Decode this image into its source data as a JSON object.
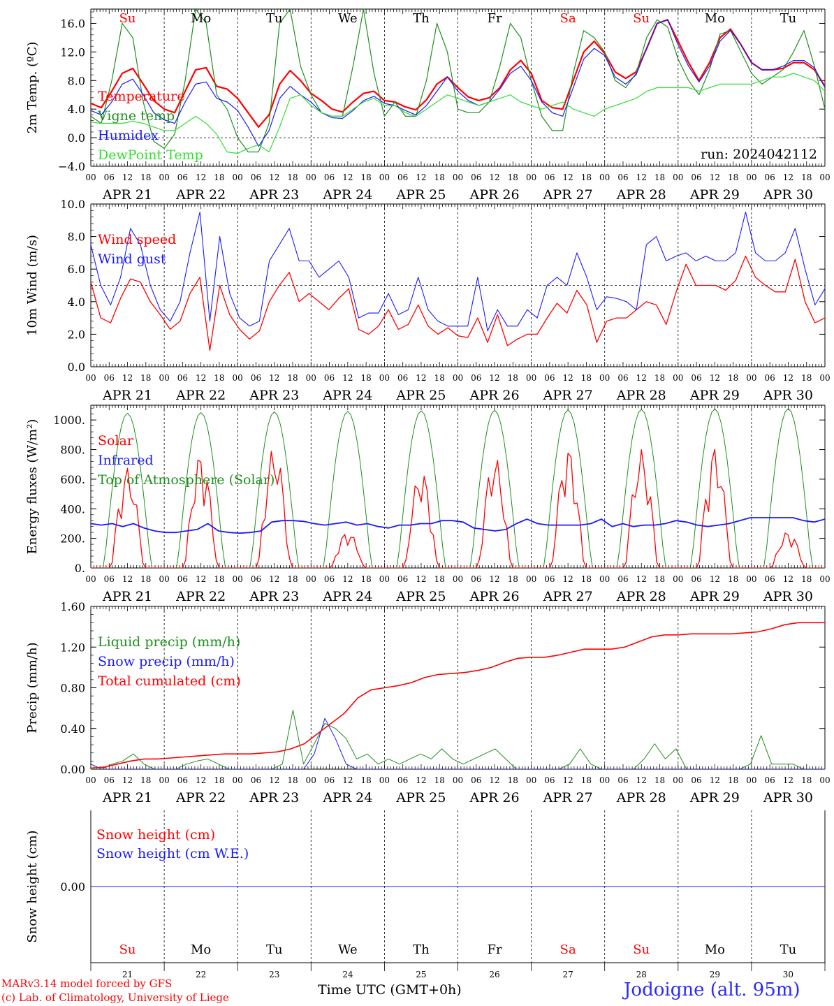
{
  "days": [
    "21",
    "22",
    "23",
    "24",
    "25",
    "26",
    "27",
    "28",
    "29",
    "30"
  ],
  "date_labels": [
    "APR 21",
    "APR 22",
    "APR 23",
    "APR 24",
    "APR 25",
    "APR 26",
    "APR 27",
    "APR 28",
    "APR 29",
    "APR 30"
  ],
  "hour_labels": [
    "00",
    "06",
    "12",
    "18"
  ],
  "weekdays": [
    "Su",
    "Mo",
    "Tu",
    "We",
    "Th",
    "Fr",
    "Sa",
    "Su",
    "Mo",
    "Tu"
  ],
  "weekday_colors": [
    "#ff0000",
    "#000000",
    "#000000",
    "#000000",
    "#000000",
    "#000000",
    "#ff0000",
    "#ff0000",
    "#000000",
    "#000000"
  ],
  "run_label": "run: 2024042112",
  "x_title": "Time UTC (GMT+0h)",
  "credits": [
    "MARv3.14 model forced by GFS",
    "(c) Lab. of Climatology, University of Liege"
  ],
  "station": "Jodoigne (alt. 95m)",
  "colors": {
    "red": "#ff0000",
    "green": "#1f8f1f",
    "blue": "#1a1aff",
    "lightgreen": "#33dd33",
    "purple": "#7a2fa0"
  },
  "chart_data": [
    {
      "type": "line",
      "ylabel": "2m Temp. (ºC)",
      "ylim": [
        -4,
        18
      ],
      "yticks": [
        -4,
        0,
        4,
        8,
        12,
        16
      ],
      "ytick_labels": [
        "−4.0",
        "0.0",
        "4.0",
        "8.0",
        "12.0",
        "16.0"
      ],
      "dashed_y": 0,
      "series": [
        {
          "name": "Temperature",
          "color": "#ff0000",
          "width": 2.2,
          "values": [
            4.8,
            4.2,
            6.5,
            9.0,
            9.7,
            7.5,
            5.2,
            4.0,
            3.5,
            6.5,
            9.5,
            9.8,
            7.2,
            6.8,
            5.5,
            3.5,
            1.5,
            3.2,
            7.5,
            9.4,
            8.0,
            6.2,
            5.2,
            4.0,
            3.6,
            5.0,
            6.2,
            6.5,
            5.2,
            5.0,
            4.3,
            3.9,
            5.3,
            7.5,
            8.5,
            7.0,
            5.7,
            5.2,
            5.6,
            7.0,
            9.5,
            10.8,
            9.0,
            5.2,
            4.2,
            4.0,
            8.0,
            12.0,
            13.5,
            11.8,
            9.2,
            8.3,
            9.2,
            12.5,
            16.0,
            16.5,
            13.5,
            10.5,
            8.0,
            10.5,
            14.0,
            15.2,
            13.0,
            10.5,
            9.5,
            9.5,
            9.7,
            10.5,
            10.5,
            9.5,
            7.2
          ]
        },
        {
          "name": "Vigne temp",
          "color": "#1f8f1f",
          "width": 1.2,
          "values": [
            3.0,
            2.0,
            8.0,
            16.0,
            14.0,
            5.0,
            -0.5,
            -1.5,
            0.5,
            8.0,
            18.0,
            16.0,
            6.0,
            4.0,
            0.0,
            -2.0,
            -2.0,
            2.0,
            16.0,
            18.0,
            10.0,
            6.0,
            3.5,
            3.0,
            3.0,
            10.0,
            18.0,
            9.0,
            3.0,
            5.0,
            3.0,
            3.0,
            8.0,
            16.0,
            12.0,
            4.0,
            3.5,
            3.5,
            5.0,
            10.0,
            16.0,
            14.0,
            8.0,
            3.0,
            1.0,
            1.0,
            9.0,
            15.0,
            14.0,
            12.0,
            8.0,
            7.0,
            9.0,
            14.0,
            16.5,
            15.5,
            11.0,
            8.0,
            6.0,
            9.5,
            14.5,
            15.0,
            12.0,
            9.0,
            7.5,
            8.5,
            9.5,
            12.0,
            15.0,
            10.0,
            4.0
          ]
        },
        {
          "name": "Humidex",
          "color": "#1a1aff",
          "width": 1.2,
          "values": [
            3.8,
            3.2,
            5.0,
            7.5,
            8.2,
            6.0,
            3.5,
            2.5,
            2.0,
            5.0,
            7.5,
            7.8,
            5.5,
            5.0,
            3.8,
            1.5,
            -1.2,
            1.0,
            5.5,
            7.2,
            6.0,
            5.0,
            3.5,
            2.8,
            2.7,
            3.8,
            5.2,
            5.8,
            4.8,
            4.5,
            3.8,
            3.2,
            4.5,
            6.5,
            8.5,
            6.5,
            5.2,
            4.5,
            5.0,
            6.8,
            9.0,
            10.0,
            8.0,
            5.0,
            3.5,
            3.0,
            7.0,
            11.0,
            12.5,
            11.5,
            8.5,
            7.5,
            8.8,
            12.5,
            16.0,
            16.5,
            13.0,
            10.0,
            7.8,
            10.0,
            13.5,
            15.0,
            13.0,
            10.5,
            9.5,
            9.5,
            10.0,
            10.8,
            10.8,
            9.8,
            7.0
          ]
        },
        {
          "name": "DewPoint Temp",
          "color": "#33dd33",
          "width": 1.2,
          "values": [
            2.2,
            2.0,
            2.0,
            2.0,
            2.3,
            2.0,
            1.5,
            1.0,
            1.0,
            2.0,
            3.0,
            2.0,
            0.5,
            -2.0,
            -2.2,
            -1.5,
            -1.0,
            -2.0,
            1.5,
            5.5,
            6.0,
            4.5,
            3.5,
            3.0,
            3.0,
            4.0,
            5.0,
            5.5,
            4.5,
            4.5,
            3.5,
            3.0,
            4.0,
            5.0,
            6.0,
            5.5,
            5.0,
            4.5,
            5.0,
            5.5,
            6.0,
            5.0,
            4.5,
            4.0,
            4.5,
            5.0,
            4.0,
            3.5,
            3.0,
            4.0,
            4.5,
            5.0,
            5.5,
            6.5,
            7.0,
            7.0,
            7.0,
            7.0,
            6.5,
            7.0,
            7.5,
            7.5,
            7.5,
            7.5,
            8.0,
            8.5,
            8.5,
            9.0,
            8.5,
            8.0,
            6.5
          ]
        }
      ]
    },
    {
      "type": "line",
      "ylabel": "10m Wind (m/s)",
      "ylim": [
        0,
        10
      ],
      "yticks": [
        0,
        2,
        4,
        6,
        8,
        10
      ],
      "ytick_labels": [
        "0.0",
        "2.0",
        "4.0",
        "6.0",
        "8.0",
        "10.0"
      ],
      "dashed_y": 5,
      "series": [
        {
          "name": "Wind speed",
          "color": "#ff0000",
          "width": 1.3,
          "values": [
            5.2,
            3.0,
            2.7,
            4.2,
            5.4,
            5.2,
            4.0,
            3.2,
            2.3,
            2.8,
            4.5,
            5.5,
            1.0,
            5.0,
            3.2,
            2.3,
            1.7,
            2.2,
            4.0,
            5.0,
            5.8,
            4.0,
            4.5,
            4.0,
            3.5,
            4.2,
            4.8,
            2.3,
            2.0,
            2.5,
            3.5,
            2.3,
            2.6,
            3.8,
            2.5,
            2.0,
            2.4,
            1.9,
            1.8,
            3.0,
            1.5,
            3.2,
            1.3,
            1.7,
            2.0,
            2.0,
            3.0,
            3.9,
            3.3,
            4.7,
            3.8,
            1.5,
            2.8,
            3.0,
            3.0,
            3.5,
            4.0,
            3.8,
            2.6,
            4.6,
            6.3,
            5.0,
            5.0,
            5.0,
            4.7,
            5.3,
            6.8,
            5.5,
            5.0,
            4.6,
            4.6,
            6.6,
            4.0,
            2.7,
            3.0
          ]
        },
        {
          "name": "Wind gust",
          "color": "#1a1aff",
          "width": 1.1,
          "values": [
            7.5,
            5.0,
            3.8,
            5.5,
            8.5,
            7.5,
            5.0,
            3.5,
            2.8,
            4.0,
            7.0,
            9.5,
            2.8,
            8.0,
            4.5,
            3.0,
            2.5,
            2.8,
            6.5,
            7.5,
            8.5,
            6.5,
            6.5,
            5.5,
            6.0,
            6.5,
            5.5,
            3.0,
            3.3,
            3.3,
            4.5,
            3.2,
            3.5,
            5.5,
            3.5,
            2.8,
            2.5,
            2.5,
            2.5,
            5.5,
            2.2,
            3.5,
            2.5,
            2.5,
            3.5,
            3.0,
            5.0,
            5.5,
            5.0,
            7.0,
            5.5,
            3.5,
            4.3,
            4.2,
            4.0,
            3.5,
            7.5,
            8.0,
            6.5,
            6.8,
            7.0,
            6.5,
            6.8,
            6.5,
            6.5,
            7.0,
            9.5,
            7.0,
            6.5,
            6.5,
            7.0,
            8.5,
            6.0,
            3.8,
            4.8
          ]
        }
      ]
    },
    {
      "type": "line",
      "ylabel": "Energy fluxes (W/m²)",
      "ylim": [
        0,
        1100
      ],
      "yticks": [
        0,
        200,
        400,
        600,
        800,
        1000
      ],
      "ytick_labels": [
        "0.",
        "200.",
        "400.",
        "600.",
        "800.",
        "1000."
      ],
      "series": [
        {
          "name": "Top of Atmosphere (Solar)",
          "color": "#1f8f1f",
          "width": 1.0,
          "daily_peaks": [
            1045,
            1050,
            1055,
            1058,
            1062,
            1065,
            1068,
            1071,
            1074,
            1077
          ]
        },
        {
          "name": "Solar",
          "color": "#ff0000",
          "width": 1.3,
          "daily_peaks": [
            680,
            780,
            825,
            250,
            670,
            760,
            820,
            800,
            820,
            250
          ]
        },
        {
          "name": "Infrared",
          "color": "#1a1aff",
          "width": 1.8,
          "values": [
            300,
            290,
            300,
            280,
            300,
            270,
            250,
            240,
            240,
            250,
            260,
            300,
            250,
            240,
            235,
            240,
            250,
            310,
            320,
            320,
            315,
            300,
            290,
            300,
            310,
            290,
            300,
            280,
            270,
            290,
            290,
            300,
            300,
            320,
            320,
            310,
            270,
            260,
            250,
            260,
            300,
            330,
            300,
            290,
            290,
            290,
            290,
            300,
            330,
            280,
            300,
            280,
            290,
            290,
            300,
            320,
            310,
            290,
            280,
            290,
            300,
            320,
            340,
            340,
            340,
            340,
            340,
            320,
            310,
            330
          ]
        }
      ]
    },
    {
      "type": "line",
      "ylabel": "Precip (mm/h)",
      "ylim": [
        0,
        1.6
      ],
      "yticks": [
        0,
        0.4,
        0.8,
        1.2,
        1.6
      ],
      "ytick_labels": [
        "0.00",
        "0.40",
        "0.80",
        "1.20",
        "1.60"
      ],
      "series": [
        {
          "name": "Liquid precip (mm/h)",
          "color": "#1f8f1f",
          "width": 1.0,
          "values": [
            0,
            0,
            0.05,
            0.08,
            0.15,
            0.05,
            0,
            0,
            0,
            0.05,
            0.08,
            0.1,
            0.05,
            0,
            0,
            0,
            0,
            0,
            0.05,
            0.58,
            0.05,
            0.25,
            0.45,
            0.4,
            0.3,
            0.1,
            0.15,
            0.05,
            0.1,
            0.05,
            0.1,
            0.15,
            0.1,
            0.2,
            0.1,
            0.05,
            0.1,
            0.15,
            0.2,
            0.1,
            0,
            0,
            0,
            0,
            0,
            0.05,
            0.2,
            0.05,
            0,
            0,
            0,
            0,
            0.1,
            0.25,
            0.1,
            0.2,
            0,
            0,
            0,
            0,
            0,
            0,
            0.05,
            0.33,
            0.05,
            0.05,
            0.05,
            0,
            0,
            0
          ]
        },
        {
          "name": "Snow precip (mm/h)",
          "color": "#1a1aff",
          "width": 1.0,
          "values": [
            0.05,
            0,
            0,
            0,
            0,
            0,
            0,
            0,
            0,
            0,
            0,
            0,
            0,
            0,
            0,
            0,
            0,
            0,
            0,
            0,
            0,
            0.15,
            0.5,
            0.3,
            0.05,
            0,
            0,
            0,
            0,
            0,
            0,
            0,
            0,
            0,
            0,
            0,
            0,
            0,
            0,
            0,
            0,
            0,
            0,
            0,
            0,
            0,
            0,
            0,
            0,
            0,
            0,
            0,
            0,
            0,
            0,
            0,
            0,
            0,
            0,
            0,
            0,
            0,
            0,
            0,
            0,
            0,
            0,
            0,
            0,
            0
          ]
        },
        {
          "name": "Total cumulated (cm)",
          "color": "#ff0000",
          "width": 1.6,
          "values": [
            0.01,
            0.02,
            0.05,
            0.08,
            0.1,
            0.1,
            0.11,
            0.12,
            0.13,
            0.14,
            0.15,
            0.15,
            0.15,
            0.16,
            0.17,
            0.2,
            0.25,
            0.35,
            0.45,
            0.55,
            0.7,
            0.78,
            0.8,
            0.82,
            0.85,
            0.9,
            0.93,
            0.94,
            0.95,
            0.97,
            1.0,
            1.05,
            1.09,
            1.1,
            1.1,
            1.12,
            1.15,
            1.18,
            1.18,
            1.18,
            1.2,
            1.25,
            1.3,
            1.32,
            1.32,
            1.33,
            1.33,
            1.33,
            1.33,
            1.34,
            1.35,
            1.38,
            1.42,
            1.44,
            1.44,
            1.44
          ]
        }
      ]
    },
    {
      "type": "line",
      "ylabel": "Snow height (cm)",
      "ylim": [
        -1,
        1
      ],
      "yticks": [
        0
      ],
      "ytick_labels": [
        "0.00"
      ],
      "series": [
        {
          "name": "Snow height (cm)",
          "color": "#ff0000",
          "width": 1.0,
          "values": [
            0,
            0
          ]
        },
        {
          "name": "Snow height (cm W.E.)",
          "color": "#1a1aff",
          "width": 1.0,
          "values": [
            0,
            0
          ]
        }
      ]
    }
  ]
}
